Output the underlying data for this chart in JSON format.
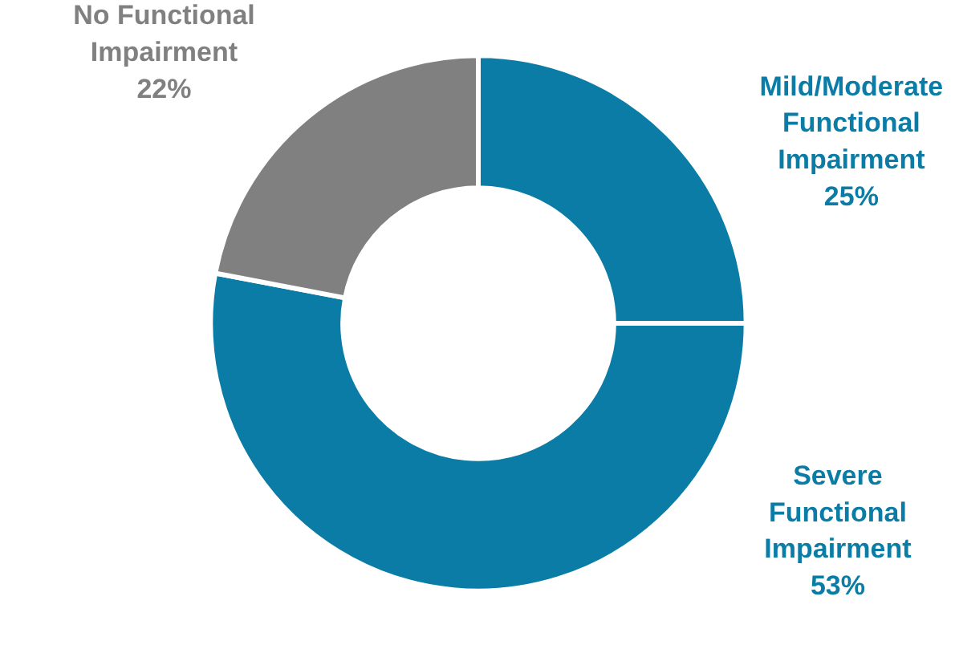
{
  "chart_data": {
    "type": "donut",
    "categories": [
      "Mild/Moderate\nFunctional\nImpairment",
      "Severe\nFunctional\nImpairment",
      "No Functional\nImpairment"
    ],
    "values": [
      25,
      53,
      22
    ],
    "value_labels": [
      "25%",
      "53%",
      "22%"
    ],
    "colors": [
      "#0a7ca6",
      "#0a7ca6",
      "#808080"
    ],
    "legend": false
  }
}
